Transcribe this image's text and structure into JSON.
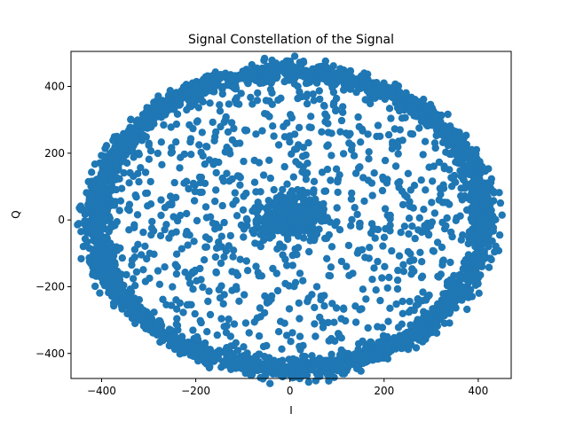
{
  "chart_data": {
    "type": "scatter",
    "title": "Signal Constellation of the Signal",
    "xlabel": "I",
    "ylabel": "Q",
    "xlim": [
      -465,
      470
    ],
    "ylim": [
      -475,
      505
    ],
    "xticks": [
      -400,
      -200,
      0,
      200,
      400
    ],
    "yticks": [
      -400,
      -200,
      0,
      200,
      400
    ],
    "xtick_labels": [
      "−400",
      "−200",
      "0",
      "200",
      "400"
    ],
    "ytick_labels": [
      "−400",
      "−200",
      "0",
      "200",
      "400"
    ],
    "grid": false,
    "marker_color": "#1f77b4",
    "clusters": [
      {
        "shape": "ring",
        "center": [
          0,
          0
        ],
        "radius_x": 412,
        "radius_y": 445,
        "spread": 16,
        "count": 2600
      },
      {
        "shape": "blob",
        "center": [
          0,
          10
        ],
        "spread": 38,
        "count": 260
      },
      {
        "shape": "disk",
        "center": [
          0,
          0
        ],
        "radius_x": 390,
        "radius_y": 420,
        "count": 800
      }
    ]
  }
}
